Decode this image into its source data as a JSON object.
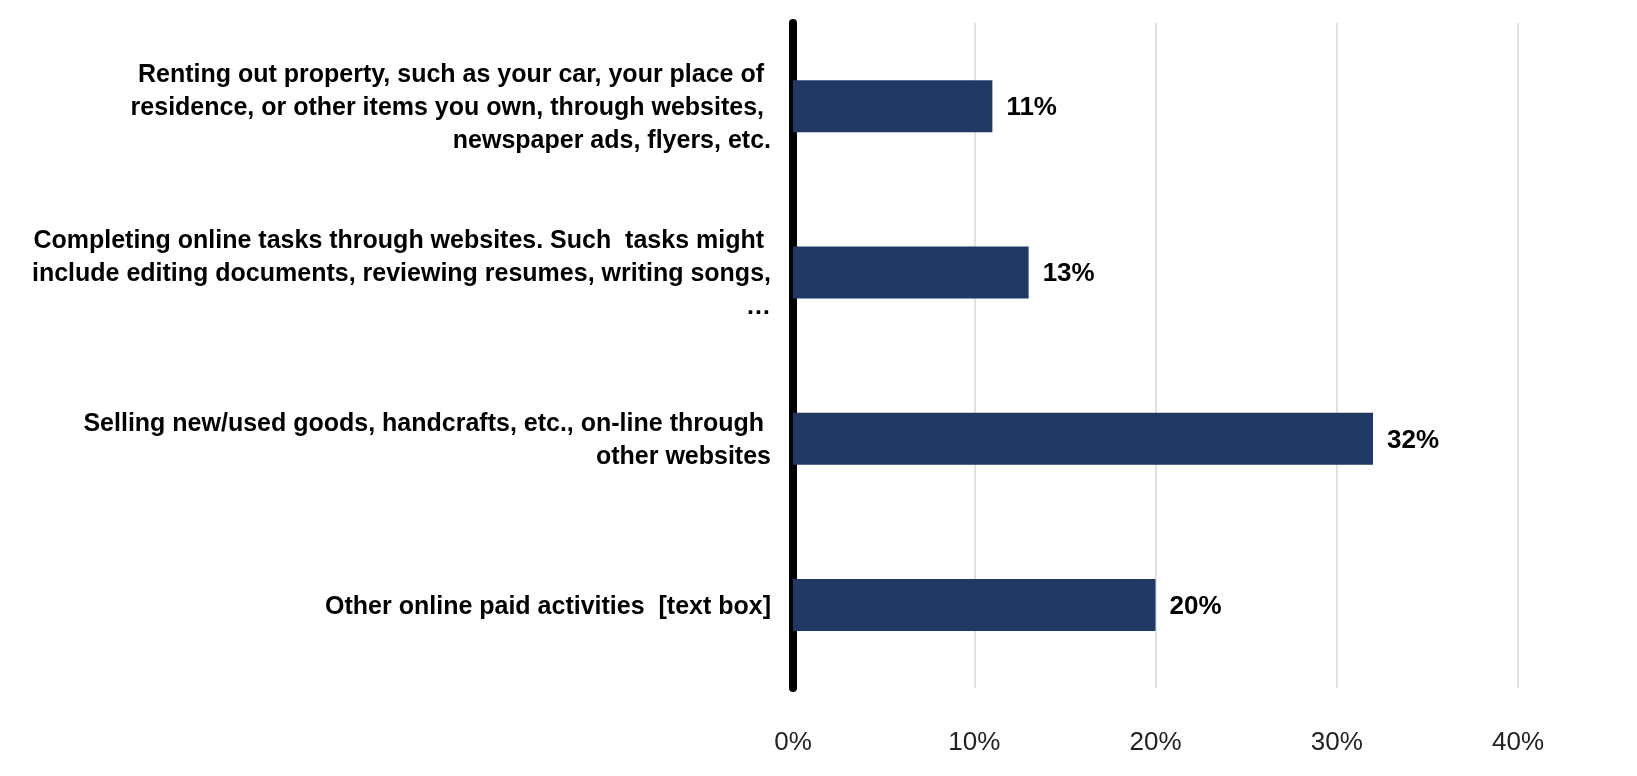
{
  "chart_data": {
    "type": "bar",
    "orientation": "horizontal",
    "categories": [
      "Renting out property, such as your car, your place of residence, or other items you own, through websites, newspaper ads, flyers, etc.",
      "Completing online tasks through websites. Such  tasks might include editing documents, reviewing resumes, writing songs,…",
      "Selling new/used goods, handcrafts, etc., on-line through other websites",
      "Other online paid activities  [text box]"
    ],
    "values": [
      11,
      13,
      32,
      20
    ],
    "value_labels": [
      "11%",
      "13%",
      "32%",
      "20%"
    ],
    "color": "#1f3864",
    "xlim": [
      0,
      40
    ],
    "xticks": [
      {
        "value": 0,
        "label": "0%"
      },
      {
        "value": 10,
        "label": "10%"
      },
      {
        "value": 20,
        "label": "20%"
      },
      {
        "value": 30,
        "label": "30%"
      },
      {
        "value": 40,
        "label": "40%"
      }
    ],
    "grid": "x"
  }
}
